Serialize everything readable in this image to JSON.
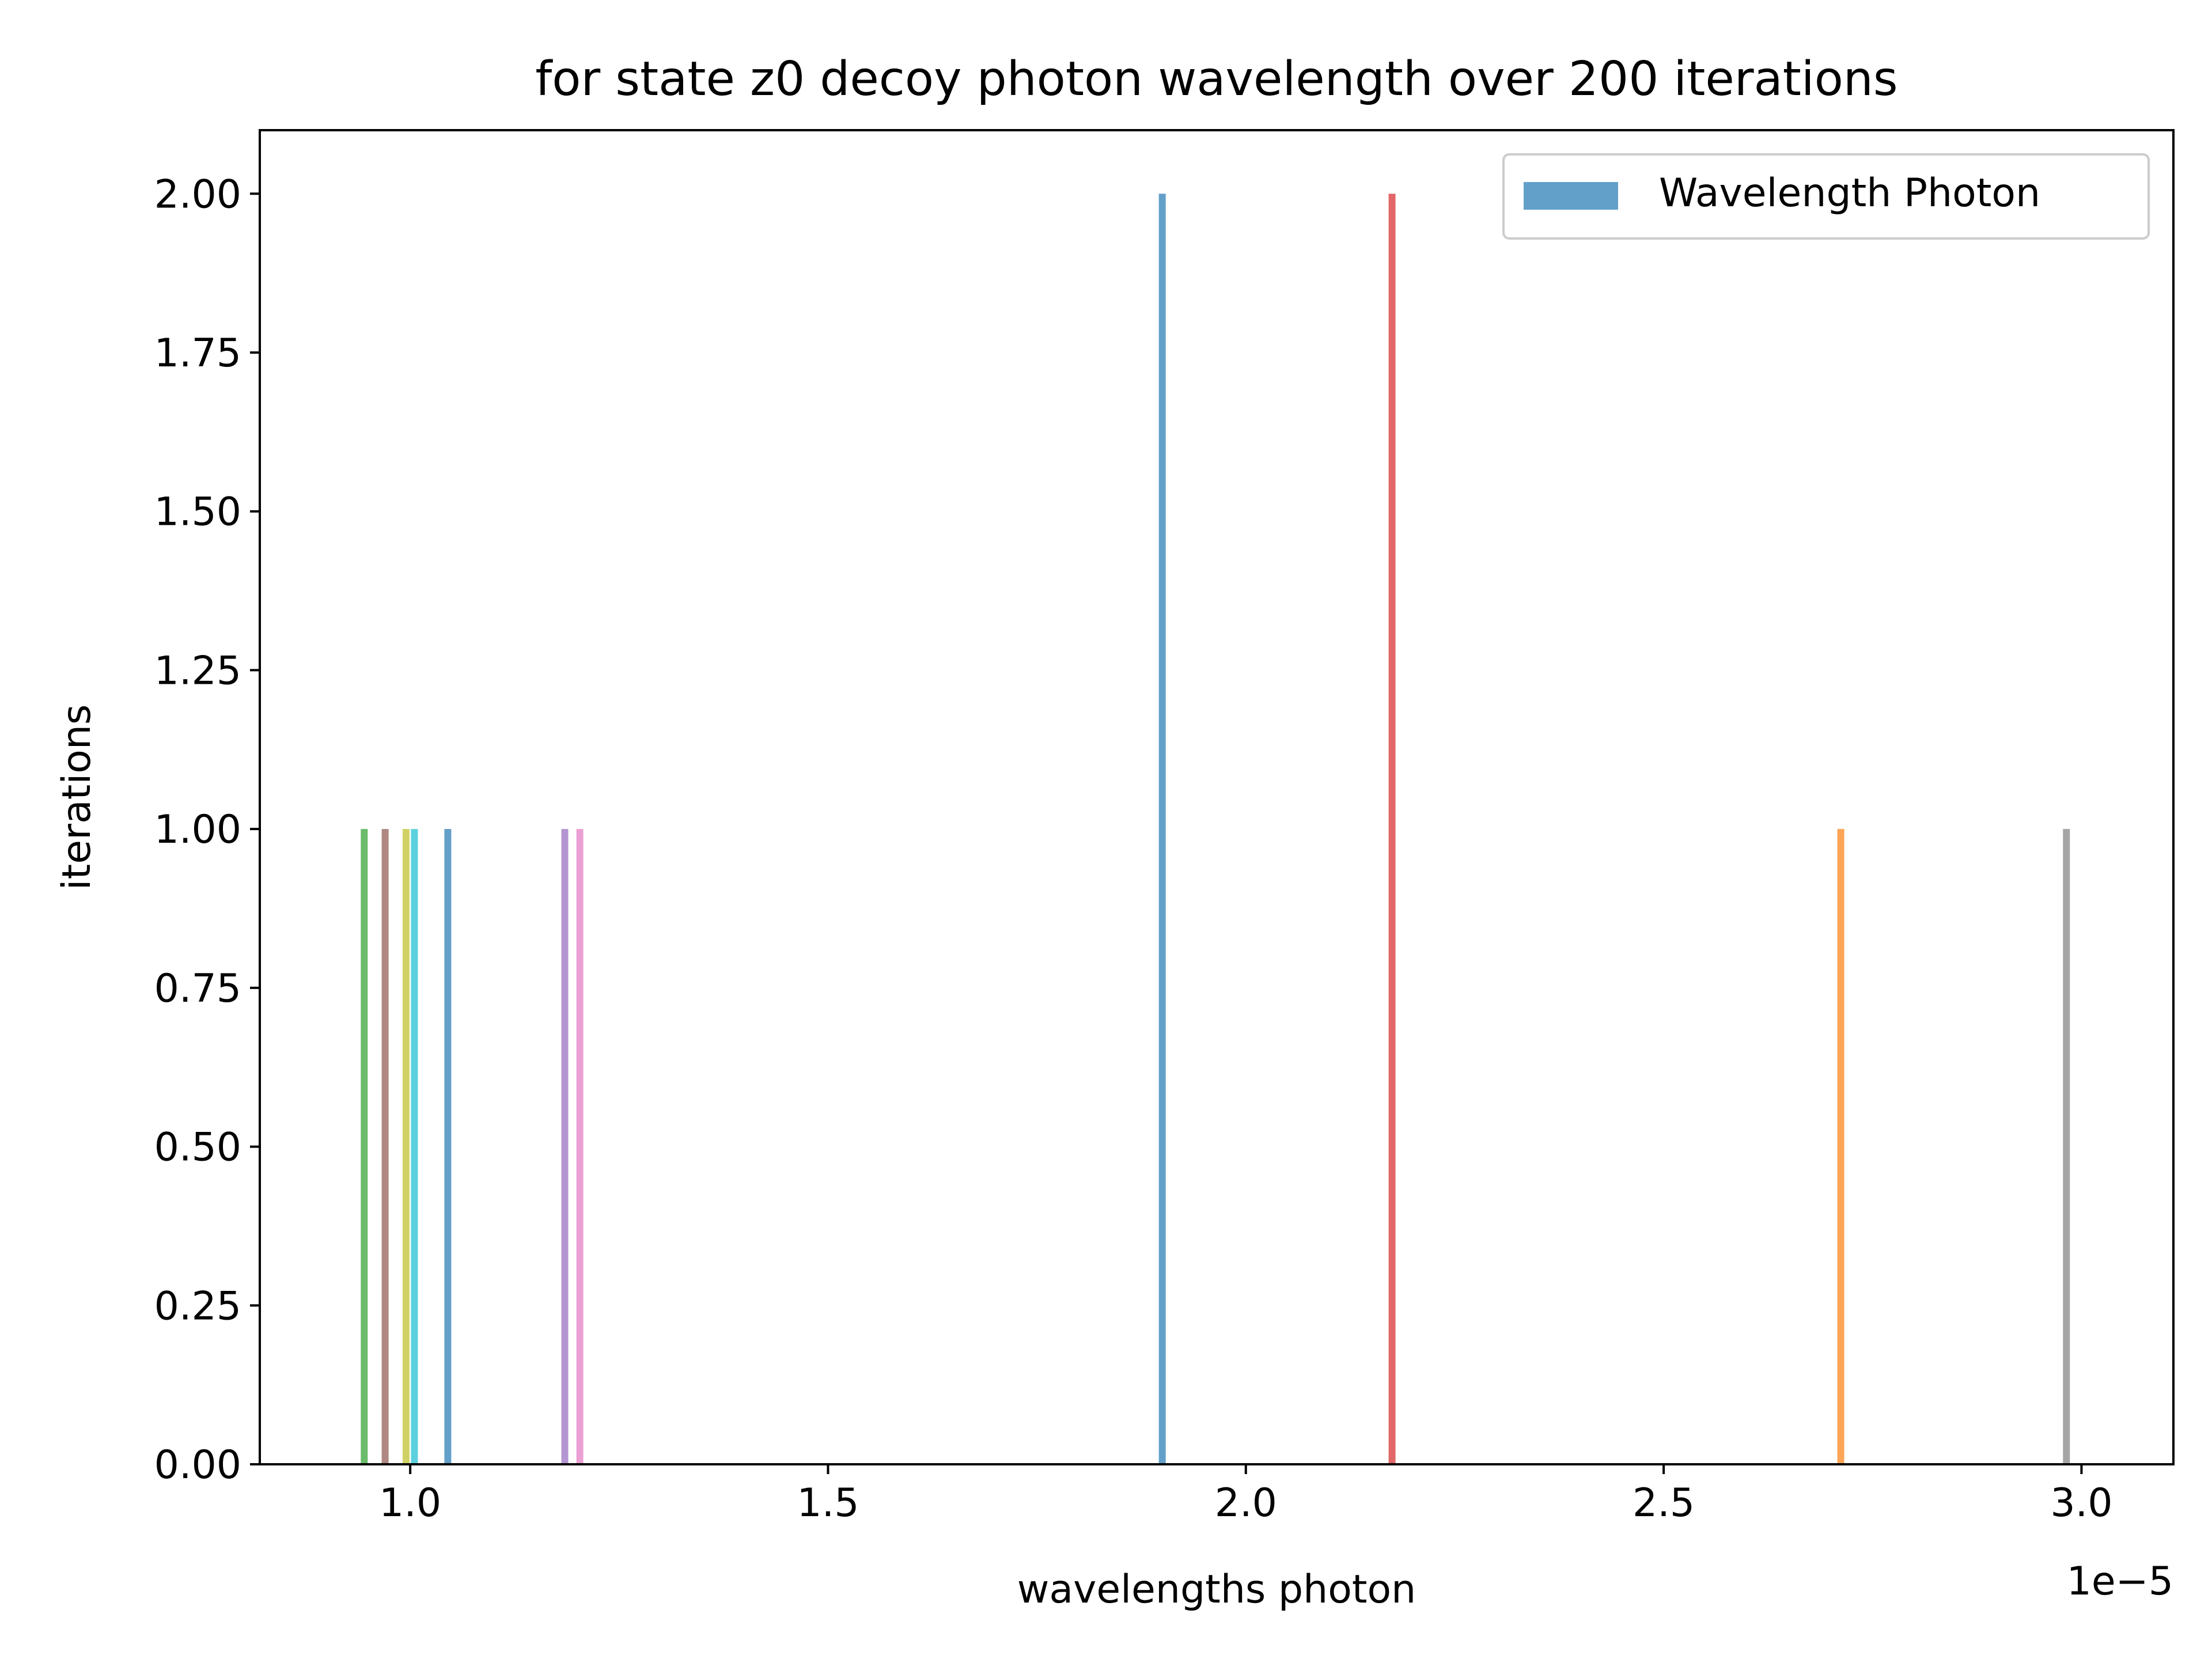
{
  "chart_data": {
    "type": "bar",
    "title": "for state z0 decoy photon wavelength over 200 iterations",
    "xlabel": "wavelengths photon",
    "ylabel": "iterations",
    "x_offset_label": "1e−5",
    "x_scale": 1e-05,
    "xlim": [
      0.82,
      3.11
    ],
    "ylim": [
      0,
      2.1
    ],
    "x_ticks": [
      1.0,
      1.5,
      2.0,
      2.5,
      3.0
    ],
    "x_tick_labels": [
      "1.0",
      "1.5",
      "2.0",
      "2.5",
      "3.0"
    ],
    "y_ticks": [
      0,
      0.25,
      0.5,
      0.75,
      1.0,
      1.25,
      1.5,
      1.75,
      2.0
    ],
    "y_tick_labels": [
      "0.00",
      "0.25",
      "0.50",
      "0.75",
      "1.00",
      "1.25",
      "1.50",
      "1.75",
      "2.00"
    ],
    "grid": false,
    "legend": {
      "position": "top-right",
      "entries": [
        {
          "name": "Wavelength Photon",
          "color": "#1f77b4"
        }
      ]
    },
    "series": [
      {
        "x": 0.945,
        "value": 1,
        "color": "#2ca02c"
      },
      {
        "x": 0.97,
        "value": 1,
        "color": "#8c564b"
      },
      {
        "x": 0.995,
        "value": 1,
        "color": "#bcbd22"
      },
      {
        "x": 1.005,
        "value": 1,
        "color": "#17becf"
      },
      {
        "x": 1.045,
        "value": 1,
        "color": "#1f77b4"
      },
      {
        "x": 1.185,
        "value": 1,
        "color": "#9467bd"
      },
      {
        "x": 1.203,
        "value": 1,
        "color": "#e377c2"
      },
      {
        "x": 1.9,
        "value": 2,
        "color": "#1f77b4"
      },
      {
        "x": 2.175,
        "value": 2,
        "color": "#d62728"
      },
      {
        "x": 2.712,
        "value": 1,
        "color": "#ff7f0e"
      },
      {
        "x": 2.982,
        "value": 1,
        "color": "#7f7f7f"
      }
    ]
  }
}
